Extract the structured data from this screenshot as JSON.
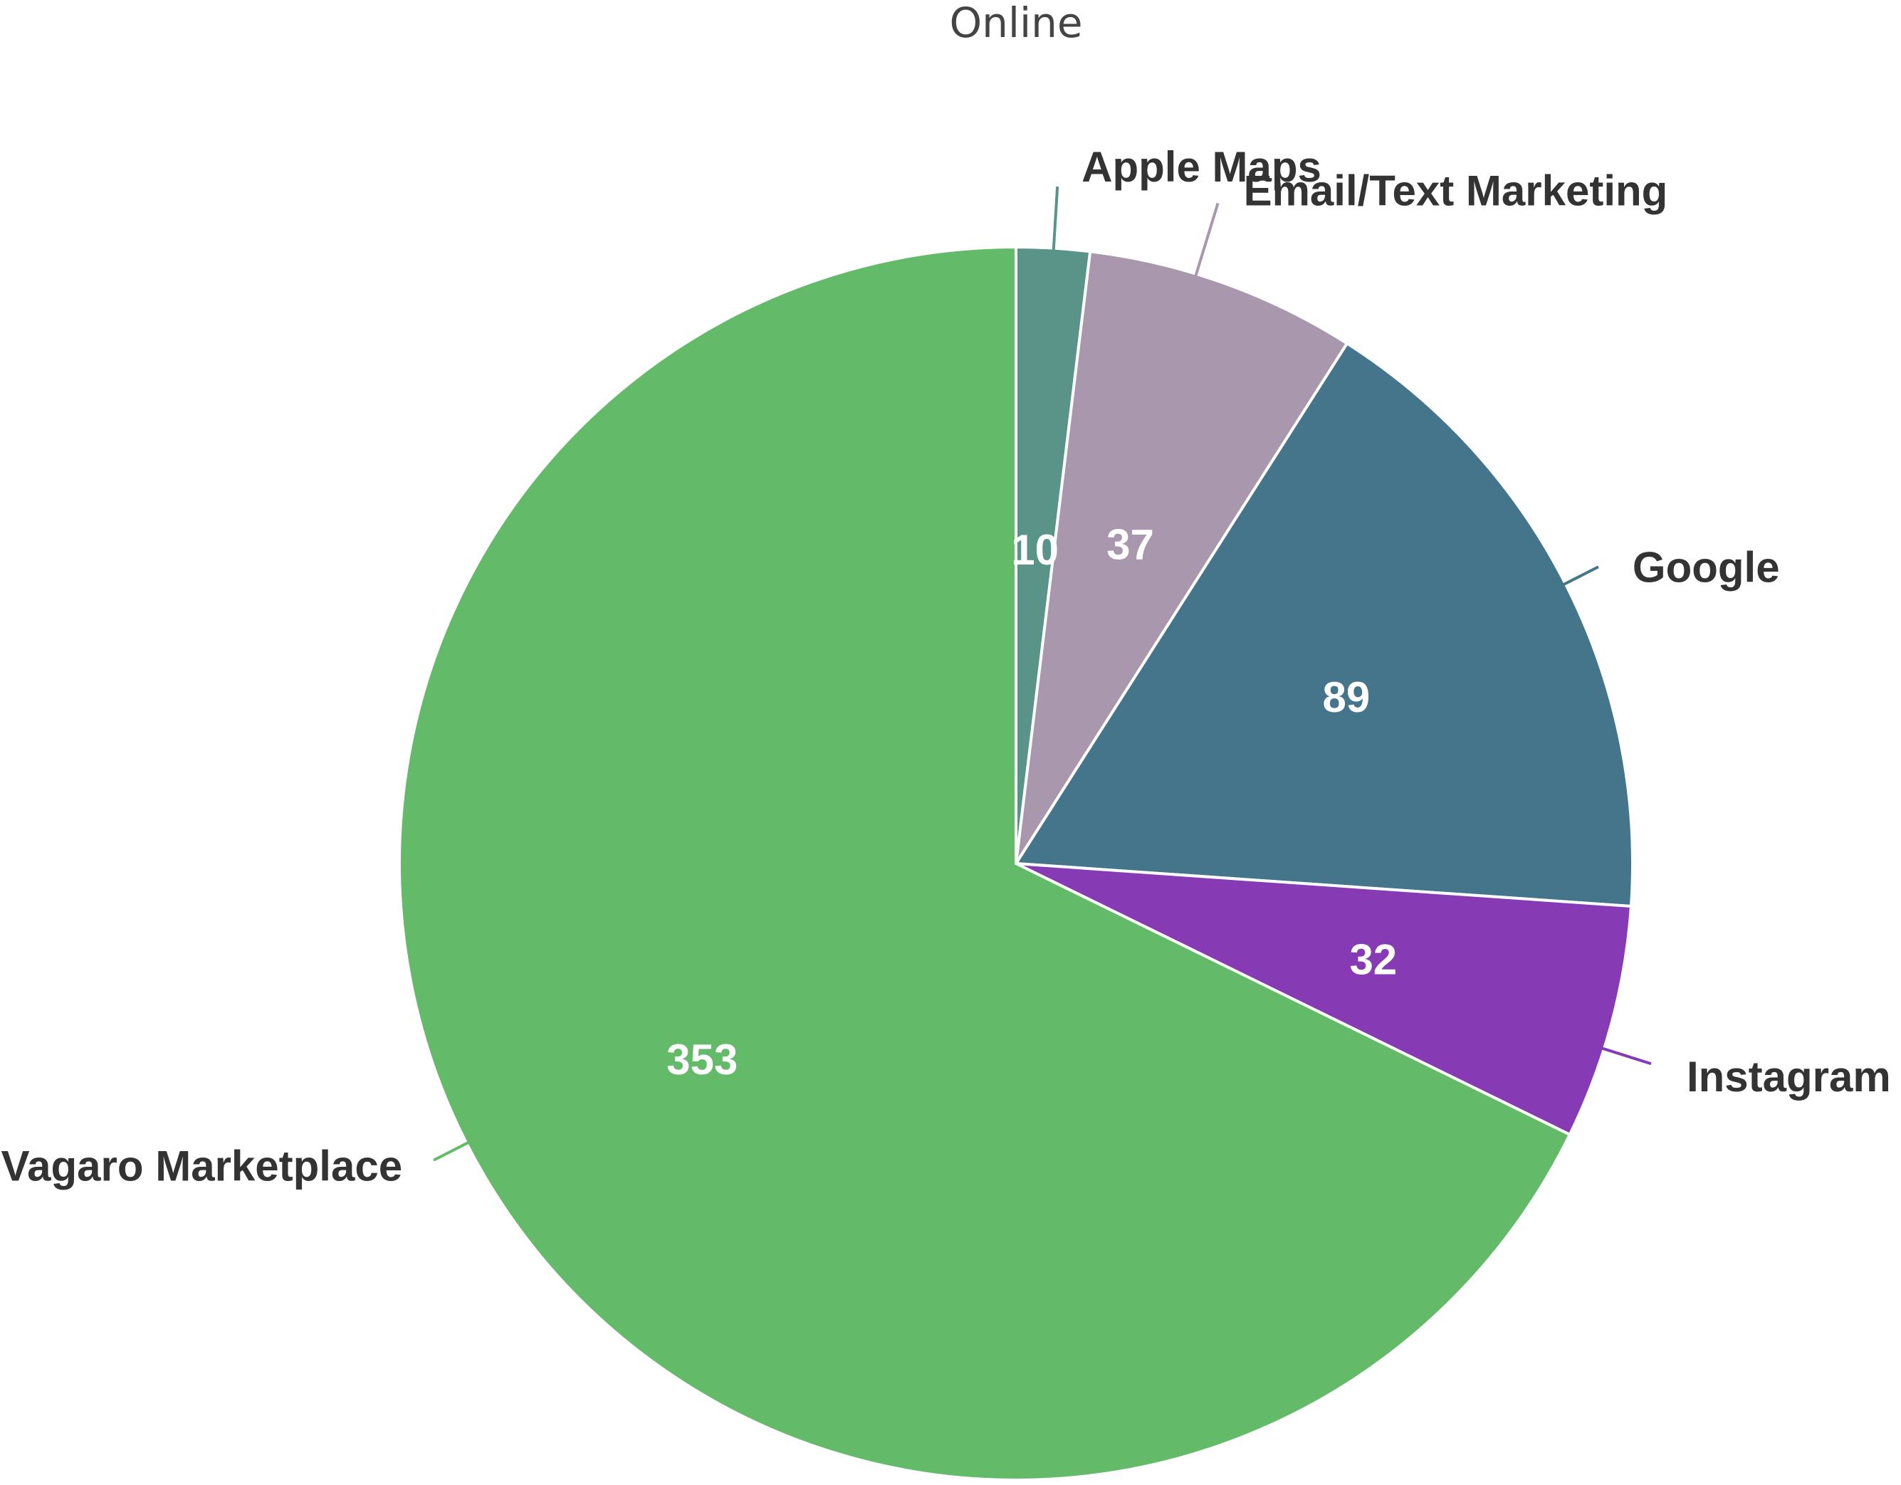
{
  "chart_data": {
    "type": "pie",
    "title": "Online",
    "start_angle_deg": 0,
    "direction": "clockwise",
    "slices": [
      {
        "name": "Apple Maps",
        "value": 10,
        "color": "#5a9488"
      },
      {
        "name": "Email/Text Marketing",
        "value": 37,
        "color": "#a998ad"
      },
      {
        "name": "Google",
        "value": 89,
        "color": "#44758b"
      },
      {
        "name": "Instagram",
        "value": 32,
        "color": "#863bb5"
      },
      {
        "name": "Vagaro Marketplace",
        "value": 353,
        "color": "#63bb6a"
      }
    ],
    "data_labels": true,
    "legend": "none"
  }
}
